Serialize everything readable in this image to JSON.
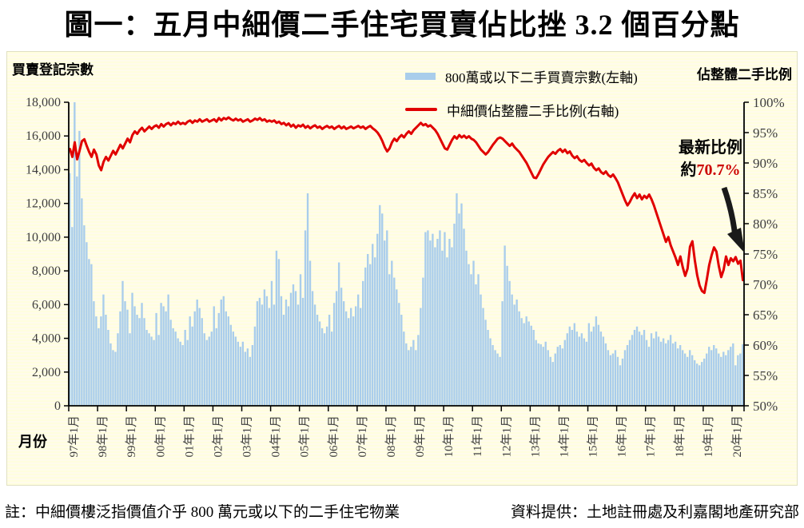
{
  "title": "圖一：五月中細價二手住宅買賣佔比挫 3.2 個百分點",
  "chart": {
    "left_axis_title": "買賣登記宗數",
    "right_axis_title": "佔整體二手比例",
    "x_axis_title": "月份",
    "legend": [
      {
        "label": "800萬或以下二手買賣宗數(左軸)",
        "type": "bar"
      },
      {
        "label": "中細價佔整體二手比例(右軸)",
        "type": "line"
      }
    ],
    "annotation": {
      "line1": "最新比例",
      "prefix": "約",
      "value": "70.7%"
    }
  },
  "chart_data": {
    "type": "bar+line",
    "x_start": "1997-01",
    "x_end": "2020-05",
    "x_tick_labels": [
      "97年1月",
      "98年1月",
      "99年1月",
      "00年1月",
      "01年1月",
      "02年1月",
      "03年1月",
      "04年1月",
      "05年1月",
      "06年1月",
      "07年1月",
      "08年1月",
      "09年1月",
      "10年1月",
      "11年1月",
      "12年1月",
      "13年1月",
      "14年1月",
      "15年1月",
      "16年1月",
      "17年1月",
      "18年1月",
      "19年1月",
      "20年1月"
    ],
    "left_axis": {
      "min": 0,
      "max": 18000,
      "step": 2000,
      "tick_labels": [
        "0",
        "2,000",
        "4,000",
        "6,000",
        "8,000",
        "10,000",
        "12,000",
        "14,000",
        "16,000",
        "18,000"
      ]
    },
    "right_axis": {
      "min": 50,
      "max": 100,
      "step": 5,
      "tick_labels": [
        "50%",
        "55%",
        "60%",
        "65%",
        "70%",
        "75%",
        "80%",
        "85%",
        "90%",
        "95%",
        "100%"
      ]
    },
    "series": [
      {
        "name": "800萬或以下二手買賣宗數(左軸)",
        "type": "bar",
        "axis": "left",
        "color": "#a9cdeb",
        "values": [
          13800,
          10600,
          18000,
          13600,
          16300,
          12300,
          10700,
          9700,
          8700,
          8400,
          6200,
          5300,
          4600,
          5300,
          6600,
          5400,
          4500,
          3700,
          3300,
          3200,
          4300,
          5600,
          7400,
          6200,
          5700,
          4300,
          6700,
          5900,
          5400,
          5200,
          6100,
          5200,
          4500,
          4300,
          4100,
          3900,
          5500,
          4200,
          6100,
          5900,
          5600,
          6600,
          5100,
          4600,
          4400,
          4000,
          3800,
          3600,
          4500,
          3900,
          5300,
          4700,
          5600,
          6300,
          5800,
          5200,
          4300,
          3900,
          4100,
          4400,
          5900,
          4600,
          5500,
          6300,
          6500,
          5600,
          5300,
          4800,
          4400,
          4100,
          3800,
          3500,
          3800,
          3200,
          3400,
          2900,
          3600,
          4700,
          6200,
          6400,
          6000,
          6900,
          6500,
          5800,
          7400,
          6000,
          9200,
          8700,
          6500,
          5400,
          6300,
          5900,
          6700,
          7200,
          6800,
          6000,
          7800,
          6400,
          10400,
          12600,
          8600,
          6800,
          6000,
          5400,
          5000,
          4600,
          4300,
          4700,
          5400,
          4400,
          6100,
          6800,
          8500,
          7000,
          6200,
          5600,
          5200,
          5800,
          5300,
          5900,
          6600,
          5800,
          7400,
          8200,
          9000,
          8400,
          9600,
          8800,
          10200,
          11900,
          11400,
          9800,
          10400,
          7800,
          8600,
          7600,
          6900,
          6100,
          5400,
          4400,
          3700,
          3300,
          3500,
          3900,
          3300,
          4200,
          5800,
          7600,
          10300,
          10400,
          9800,
          10200,
          9400,
          9900,
          10400,
          9200,
          10300,
          8800,
          9900,
          9400,
          10800,
          12600,
          11400,
          12000,
          10500,
          9200,
          8400,
          7800,
          8600,
          7200,
          7800,
          6600,
          5800,
          5100,
          4500,
          4000,
          3600,
          3300,
          3100,
          2900,
          6200,
          9500,
          8300,
          7400,
          6600,
          6000,
          6300,
          5600,
          5200,
          4900,
          5300,
          5000,
          4750,
          4500,
          3900,
          3700,
          3650,
          3500,
          3800,
          3300,
          2900,
          2600,
          3100,
          3500,
          3600,
          3400,
          3900,
          4300,
          4700,
          4500,
          4900,
          4400,
          4100,
          4300,
          4000,
          3800,
          4900,
          4400,
          4700,
          5300,
          4800,
          4400,
          4100,
          3700,
          3300,
          3000,
          3100,
          3300,
          2900,
          2400,
          2800,
          3300,
          3600,
          3900,
          4200,
          4500,
          4700,
          4400,
          4200,
          4500,
          3900,
          3500,
          4300,
          4000,
          4400,
          4100,
          3800,
          4000,
          3700,
          3900,
          4200,
          3700,
          3800,
          3400,
          3600,
          3300,
          3100,
          2900,
          3300,
          3000,
          2700,
          2500,
          2400,
          2600,
          2800,
          3100,
          3500,
          3300,
          3600,
          3400,
          3100,
          2900,
          3200,
          3000,
          3300,
          3500,
          3700,
          2400,
          3000,
          3100,
          3650
        ]
      },
      {
        "name": "中細價佔整體二手比例(右軸)",
        "type": "line",
        "axis": "right",
        "color": "#e00000",
        "values": [
          92.3,
          91.0,
          93.4,
          90.6,
          92.0,
          93.6,
          93.9,
          92.8,
          91.8,
          91.0,
          92.2,
          91.4,
          89.6,
          88.8,
          90.2,
          91.0,
          90.4,
          91.2,
          92.0,
          91.4,
          92.2,
          93.0,
          92.4,
          93.2,
          94.0,
          93.4,
          94.6,
          95.2,
          94.8,
          95.4,
          95.8,
          95.2,
          95.6,
          96.0,
          95.6,
          96.0,
          96.2,
          95.8,
          96.4,
          96.0,
          96.4,
          96.6,
          96.2,
          96.6,
          96.4,
          96.8,
          96.4,
          96.6,
          96.4,
          96.8,
          97.0,
          96.6,
          97.0,
          96.8,
          97.2,
          96.8,
          97.0,
          97.2,
          96.8,
          97.0,
          97.2,
          96.8,
          97.4,
          97.0,
          97.4,
          97.2,
          97.5,
          97.2,
          97.0,
          97.3,
          97.0,
          97.2,
          96.8,
          97.0,
          97.2,
          96.8,
          97.0,
          97.3,
          97.1,
          97.4,
          97.0,
          97.2,
          96.8,
          97.0,
          96.8,
          97.0,
          96.6,
          96.8,
          96.4,
          96.6,
          96.2,
          96.5,
          96.0,
          96.3,
          95.8,
          96.2,
          96.0,
          96.3,
          95.8,
          96.1,
          95.7,
          96.0,
          96.2,
          95.8,
          96.0,
          95.6,
          95.9,
          96.1,
          95.8,
          96.0,
          95.6,
          95.9,
          96.1,
          95.7,
          96.0,
          95.6,
          95.8,
          96.0,
          95.7,
          95.9,
          96.1,
          95.8,
          96.0,
          95.6,
          95.9,
          96.1,
          95.7,
          95.4,
          95.0,
          94.4,
          93.6,
          92.6,
          91.9,
          92.4,
          93.4,
          94.0,
          93.6,
          94.2,
          94.6,
          94.2,
          94.8,
          95.2,
          94.8,
          95.4,
          95.8,
          96.2,
          96.6,
          96.2,
          96.4,
          96.0,
          96.2,
          95.8,
          95.4,
          94.8,
          94.0,
          93.2,
          92.4,
          92.2,
          93.0,
          93.8,
          94.4,
          94.0,
          94.6,
          94.2,
          94.5,
          94.1,
          94.4,
          94.0,
          93.8,
          93.4,
          92.8,
          92.2,
          91.8,
          91.4,
          91.8,
          92.4,
          93.0,
          93.5,
          94.0,
          94.2,
          94.0,
          93.6,
          93.2,
          92.8,
          93.2,
          92.6,
          92.2,
          91.8,
          91.2,
          90.6,
          90.0,
          89.2,
          88.4,
          87.6,
          87.5,
          88.2,
          89.0,
          89.8,
          90.4,
          91.0,
          91.4,
          91.8,
          91.5,
          92.0,
          92.3,
          91.8,
          92.2,
          91.6,
          91.9,
          91.2,
          90.8,
          91.1,
          90.5,
          90.2,
          90.5,
          90.0,
          89.6,
          89.9,
          89.2,
          88.8,
          89.1,
          88.5,
          88.2,
          88.6,
          88.0,
          87.7,
          88.1,
          87.5,
          86.8,
          85.8,
          84.8,
          83.8,
          83.0,
          83.6,
          84.4,
          85.0,
          84.2,
          84.8,
          84.0,
          84.6,
          84.2,
          84.8,
          84.0,
          83.0,
          81.8,
          80.6,
          79.4,
          78.2,
          77.0,
          77.8,
          76.4,
          75.4,
          74.4,
          73.2,
          74.6,
          72.8,
          71.4,
          72.6,
          76.2,
          77.1,
          74.0,
          71.5,
          69.8,
          68.9,
          68.6,
          70.8,
          73.2,
          74.8,
          76.1,
          75.4,
          73.0,
          71.2,
          72.4,
          74.6,
          73.2,
          74.3,
          73.8,
          74.5,
          73.4,
          73.9,
          70.7
        ]
      }
    ]
  },
  "footer": {
    "note": "註：中細價樓泛指價值介乎 800 萬元或以下的二手住宅物業",
    "credit": "資料提供：土地註冊處及利嘉閣地產研究部"
  }
}
